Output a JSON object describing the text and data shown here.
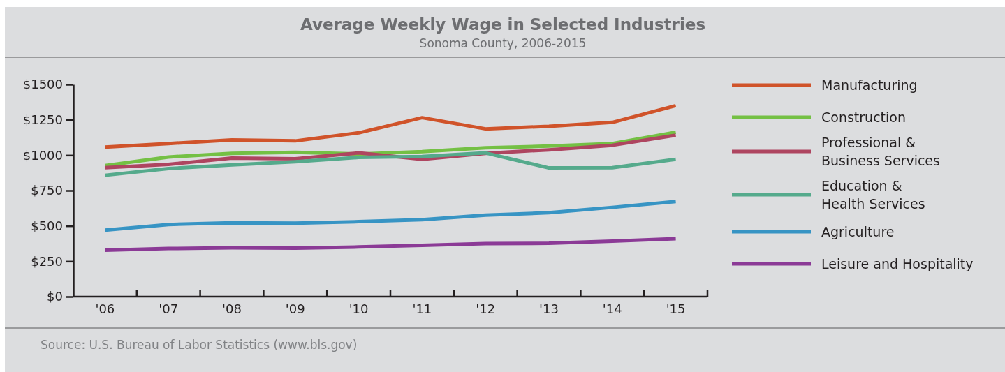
{
  "chart_data": {
    "type": "line",
    "title": "Average Weekly Wage in Selected Industries",
    "subtitle": "Sonoma County, 2006-2015",
    "categories": [
      "'06",
      "'07",
      "'08",
      "'09",
      "'10",
      "'11",
      "'12",
      "'13",
      "'14",
      "'15"
    ],
    "series": [
      {
        "name": "Manufacturing",
        "color": "#d0532a",
        "values": [
          1057,
          1082,
          1108,
          1101,
          1158,
          1265,
          1186,
          1204,
          1232,
          1350
        ]
      },
      {
        "name": "Construction",
        "color": "#74c044",
        "values": [
          926,
          987,
          1013,
          1020,
          1008,
          1025,
          1052,
          1064,
          1082,
          1162
        ]
      },
      {
        "name": "Professional & Business Services",
        "color": "#ae4560",
        "values": [
          912,
          935,
          979,
          975,
          1016,
          971,
          1013,
          1038,
          1070,
          1141
        ]
      },
      {
        "name": "Education & Health Services",
        "color": "#55aa8c",
        "values": [
          858,
          905,
          931,
          954,
          984,
          990,
          1016,
          910,
          912,
          971
        ]
      },
      {
        "name": "Agriculture",
        "color": "#3794c4",
        "values": [
          470,
          510,
          522,
          519,
          530,
          544,
          576,
          593,
          631,
          672
        ]
      },
      {
        "name": "Leisure and Hospitality",
        "color": "#8b3a96",
        "values": [
          328,
          340,
          346,
          343,
          351,
          363,
          375,
          377,
          392,
          409
        ]
      }
    ],
    "ylim": [
      0,
      1500
    ],
    "yticks": [
      {
        "value": 0,
        "label": "$0"
      },
      {
        "value": 250,
        "label": "$250"
      },
      {
        "value": 500,
        "label": "$500"
      },
      {
        "value": 750,
        "label": "$750"
      },
      {
        "value": 1000,
        "label": "$1000"
      },
      {
        "value": 1250,
        "label": "$1250"
      },
      {
        "value": 1500,
        "label": "$1500"
      }
    ],
    "grid": false,
    "legend": "right",
    "marker": "none",
    "line_style": "solid",
    "annotations": [
      "Source: U.S. Bureau of Labor Statistics (www.bls.gov)"
    ]
  }
}
